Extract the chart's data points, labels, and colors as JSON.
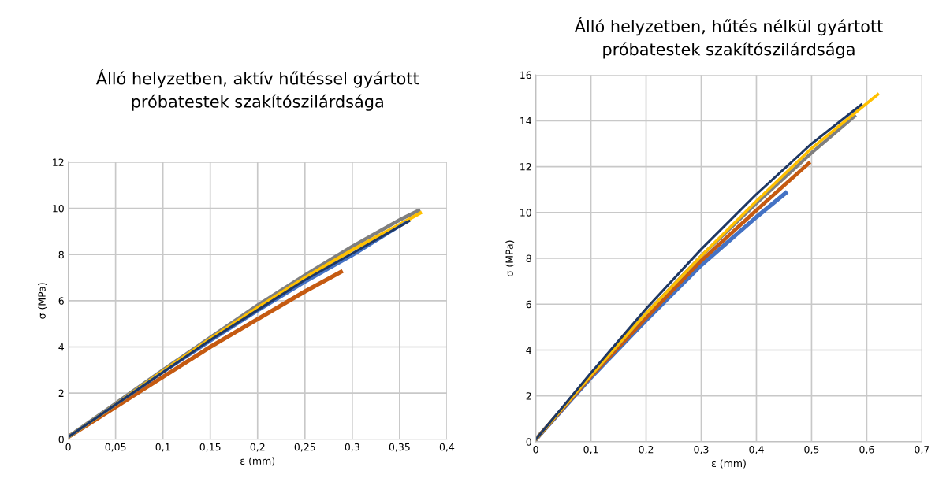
{
  "chart_data": [
    {
      "type": "line",
      "title": "Álló helyzetben, aktív hűtéssel gyártott\npróbatestek szakítószilárdsága",
      "xlabel": "ε (mm)",
      "ylabel": "σ (MPa)",
      "grid": true,
      "legend": false,
      "marker": "none",
      "line_style": "solid",
      "xlim": [
        0,
        0.4
      ],
      "xticks": [
        0,
        {
          "value": 0.05,
          "label": "0,05"
        },
        {
          "value": 0.1,
          "label": "0,1"
        },
        {
          "value": 0.15,
          "label": "0,15"
        },
        {
          "value": 0.2,
          "label": "0,2"
        },
        {
          "value": 0.25,
          "label": "0,25"
        },
        {
          "value": 0.3,
          "label": "0,3"
        },
        {
          "value": 0.35,
          "label": "0,35"
        },
        {
          "value": 0.4,
          "label": "0,4"
        }
      ],
      "ylim": [
        0,
        12
      ],
      "yticks": [
        0,
        2,
        4,
        6,
        8,
        10,
        12
      ],
      "series": [
        {
          "color": "#c55a11",
          "x": [
            0,
            0.05,
            0.1,
            0.15,
            0.2,
            0.25,
            0.288
          ],
          "values": [
            0.1,
            1.4,
            2.7,
            4.0,
            5.2,
            6.4,
            7.25
          ]
        },
        {
          "color": "#7f7f7f",
          "x": [
            0,
            0.05,
            0.1,
            0.15,
            0.2,
            0.25,
            0.3,
            0.35,
            0.37
          ],
          "values": [
            0.1,
            1.55,
            3.0,
            4.4,
            5.8,
            7.1,
            8.35,
            9.5,
            9.9
          ]
        },
        {
          "color": "#ffc000",
          "x": [
            0,
            0.05,
            0.1,
            0.15,
            0.2,
            0.25,
            0.3,
            0.35,
            0.372
          ],
          "values": [
            0.1,
            1.5,
            2.95,
            4.35,
            5.7,
            7.0,
            8.2,
            9.3,
            9.8
          ]
        },
        {
          "color": "#4472c4",
          "x": [
            0,
            0.05,
            0.1,
            0.15,
            0.2,
            0.25,
            0.3,
            0.357
          ],
          "values": [
            0.1,
            1.5,
            2.9,
            4.25,
            5.55,
            6.8,
            7.95,
            9.4
          ]
        },
        {
          "color": "#1f3864",
          "x": [
            0,
            0.05,
            0.1,
            0.15,
            0.2,
            0.25,
            0.3,
            0.36
          ],
          "values": [
            0.1,
            1.5,
            2.9,
            4.3,
            5.6,
            6.9,
            8.05,
            9.45
          ]
        }
      ]
    },
    {
      "type": "line",
      "title": "Álló helyzetben, hűtés nélkül gyártott\npróbatestek szakítószilárdsága",
      "xlabel": "ε (mm)",
      "ylabel": "σ (MPa)",
      "grid": true,
      "legend": false,
      "marker": "none",
      "line_style": "solid",
      "xlim": [
        0,
        0.7
      ],
      "xticks": [
        0,
        {
          "value": 0.1,
          "label": "0,1"
        },
        {
          "value": 0.2,
          "label": "0,2"
        },
        {
          "value": 0.3,
          "label": "0,3"
        },
        {
          "value": 0.4,
          "label": "0,4"
        },
        {
          "value": 0.5,
          "label": "0,5"
        },
        {
          "value": 0.6,
          "label": "0,6"
        },
        {
          "value": 0.7,
          "label": "0,7"
        }
      ],
      "ylim": [
        0,
        16
      ],
      "yticks": [
        0,
        2,
        4,
        6,
        8,
        10,
        12,
        14,
        16
      ],
      "series": [
        {
          "color": "#4472c4",
          "x": [
            0,
            0.1,
            0.2,
            0.3,
            0.4,
            0.453
          ],
          "values": [
            0.1,
            2.8,
            5.3,
            7.7,
            9.8,
            10.85
          ]
        },
        {
          "color": "#c55a11",
          "x": [
            0,
            0.1,
            0.2,
            0.3,
            0.4,
            0.495
          ],
          "values": [
            0.1,
            2.85,
            5.4,
            7.9,
            10.1,
            12.15
          ]
        },
        {
          "color": "#7f7f7f",
          "x": [
            0,
            0.1,
            0.2,
            0.3,
            0.4,
            0.5,
            0.578
          ],
          "values": [
            0.1,
            2.9,
            5.6,
            8.1,
            10.4,
            12.6,
            14.2
          ]
        },
        {
          "color": "#ffc000",
          "x": [
            0,
            0.1,
            0.2,
            0.3,
            0.4,
            0.5,
            0.62
          ],
          "values": [
            0.1,
            2.9,
            5.6,
            8.1,
            10.5,
            12.8,
            15.15
          ]
        },
        {
          "color": "#1f3864",
          "x": [
            0,
            0.1,
            0.2,
            0.3,
            0.4,
            0.5,
            0.59
          ],
          "values": [
            0.1,
            3.0,
            5.8,
            8.4,
            10.8,
            13.0,
            14.7
          ]
        }
      ]
    }
  ]
}
